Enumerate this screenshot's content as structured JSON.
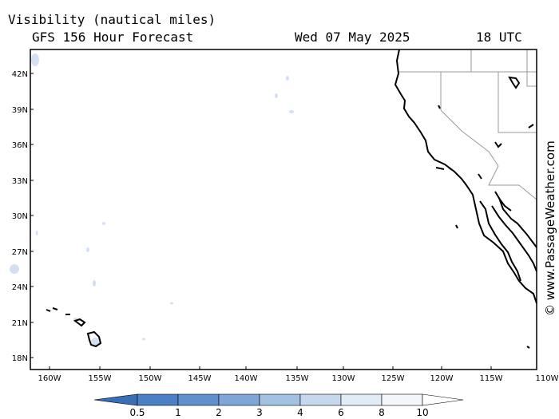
{
  "header": {
    "title": "Visibility (nautical miles)",
    "subtitle": "GFS 156 Hour Forecast",
    "date": "Wed 07 May 2025",
    "time": "18 UTC"
  },
  "axes": {
    "lat_ticks": [
      "42N",
      "39N",
      "36N",
      "33N",
      "30N",
      "27N",
      "24N",
      "21N",
      "18N"
    ],
    "lon_ticks": [
      "160W",
      "155W",
      "150W",
      "145W",
      "140W",
      "135W",
      "130W",
      "125W",
      "120W",
      "115W",
      "110W"
    ]
  },
  "colorbar": {
    "labels": [
      "0.5",
      "1",
      "2",
      "3",
      "4",
      "6",
      "8",
      "10"
    ],
    "colors": [
      "#3a6fb8",
      "#4b80c4",
      "#5f8fcc",
      "#7ea7d8",
      "#a3c1e3",
      "#c6d8ee",
      "#e2ecf7",
      "#ffffff"
    ]
  },
  "watermark": "© www.PassageWeather.com",
  "colors": {
    "land_outline": "#000000",
    "border": "#999999",
    "fog": "#c9d9ef"
  }
}
